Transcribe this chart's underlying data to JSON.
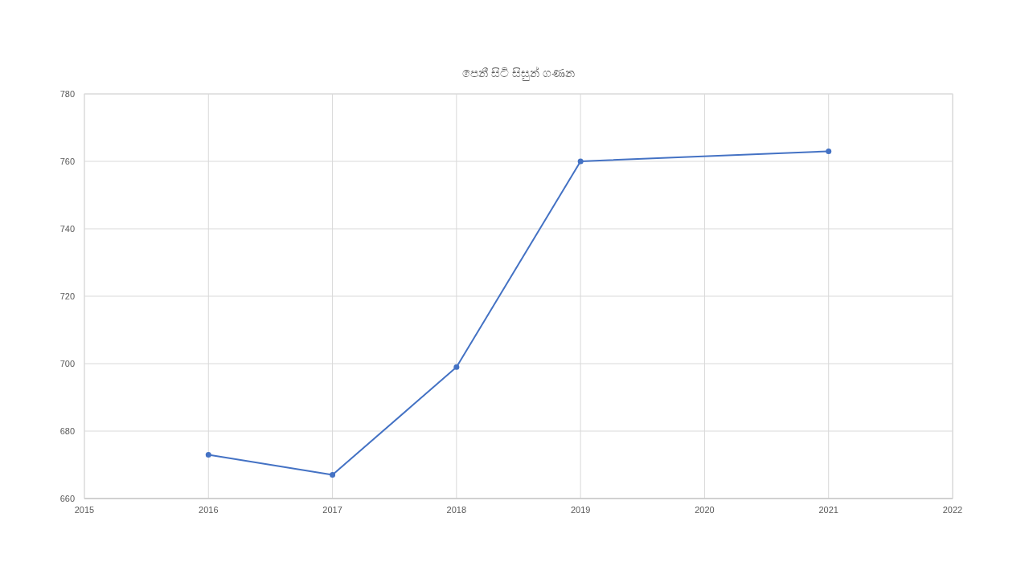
{
  "chart_data": {
    "type": "line",
    "title": "පෙනී සිටි සිසුන් ගණන",
    "x": [
      2016,
      2017,
      2018,
      2019,
      2021
    ],
    "series": [
      {
        "color": "#4472c4",
        "values": [
          673,
          667,
          699,
          760,
          763
        ]
      }
    ],
    "xlim": [
      2015,
      2022
    ],
    "xticks": [
      2015,
      2016,
      2017,
      2018,
      2019,
      2020,
      2021,
      2022
    ],
    "ylim": [
      660,
      780
    ],
    "yticks": [
      660,
      680,
      700,
      720,
      740,
      760,
      780
    ],
    "grid": true,
    "marker": "circle",
    "line_style": "solid"
  }
}
